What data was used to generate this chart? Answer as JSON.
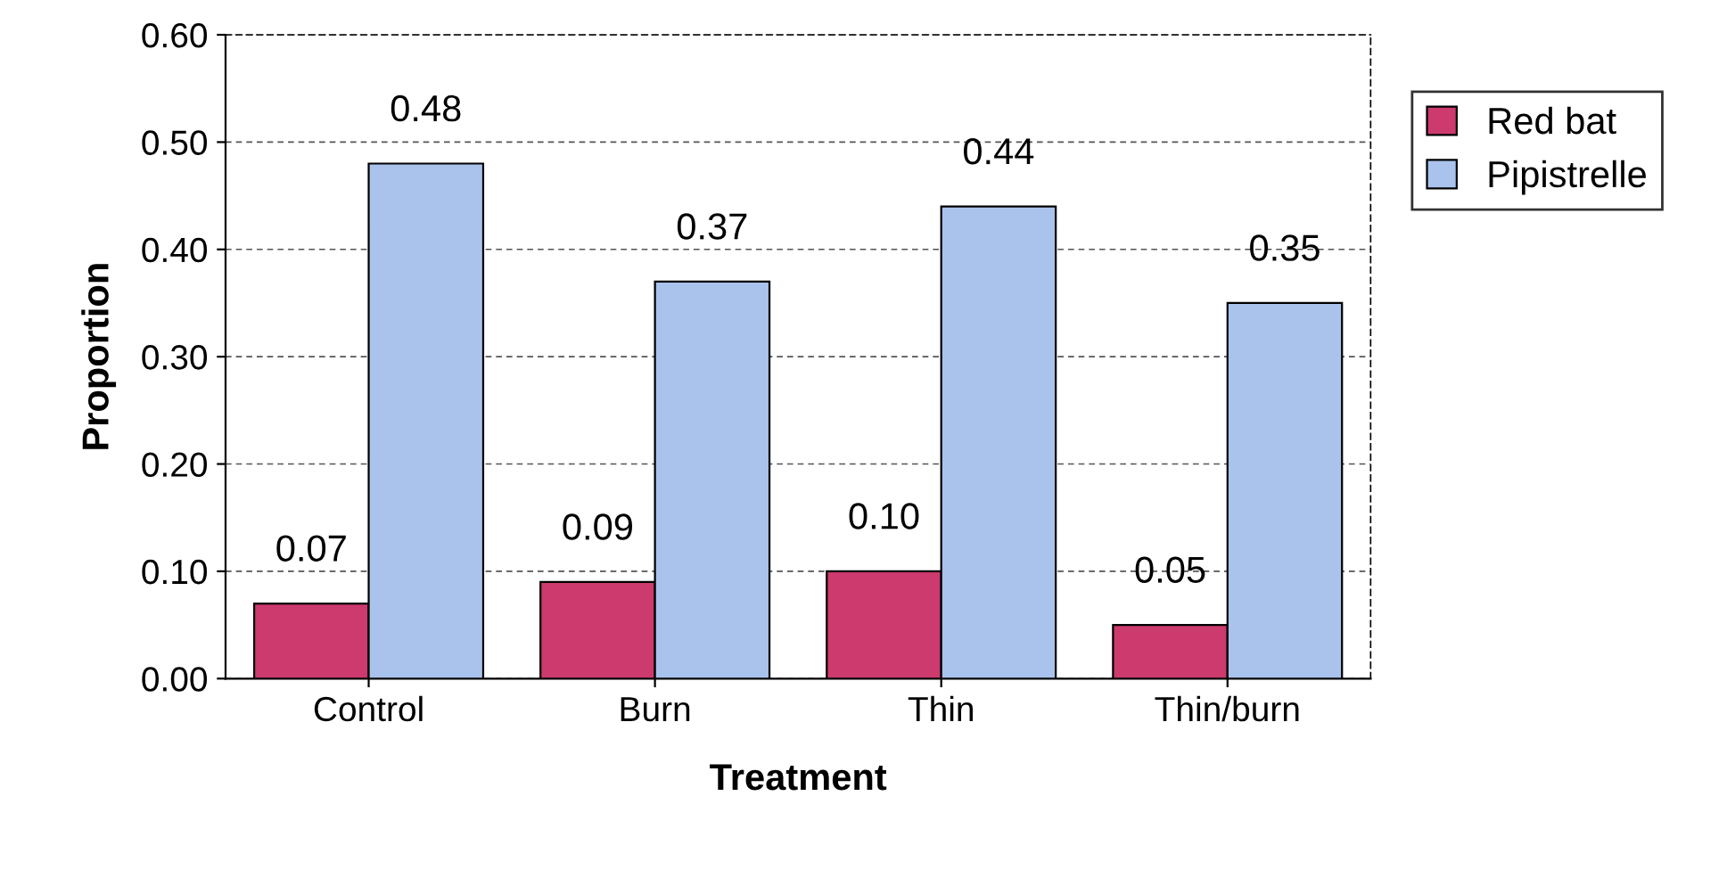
{
  "chart_data": {
    "type": "bar",
    "xlabel": "Treatment",
    "ylabel": "Proportion",
    "categories": [
      "Control",
      "Burn",
      "Thin",
      "Thin/burn"
    ],
    "series": [
      {
        "name": "Red bat",
        "color": "#cc3a6e",
        "values": [
          0.07,
          0.09,
          0.1,
          0.05
        ],
        "value_labels": [
          "0.07",
          "0.09",
          "0.10",
          "0.05"
        ]
      },
      {
        "name": "Pipistrelle",
        "color": "#a9c3ec",
        "values": [
          0.48,
          0.37,
          0.44,
          0.35
        ],
        "value_labels": [
          "0.48",
          "0.37",
          "0.44",
          "0.35"
        ]
      }
    ],
    "ylim": [
      0,
      0.6
    ],
    "yticks": [
      {
        "value": 0,
        "label": "0.00"
      },
      {
        "value": 0.1,
        "label": "0.10"
      },
      {
        "value": 0.2,
        "label": "0.20"
      },
      {
        "value": 0.3,
        "label": "0.30"
      },
      {
        "value": 0.4,
        "label": "0.40"
      },
      {
        "value": 0.5,
        "label": "0.50"
      },
      {
        "value": 0.6,
        "label": "0.60"
      }
    ],
    "grid": "y",
    "legend": "right"
  }
}
